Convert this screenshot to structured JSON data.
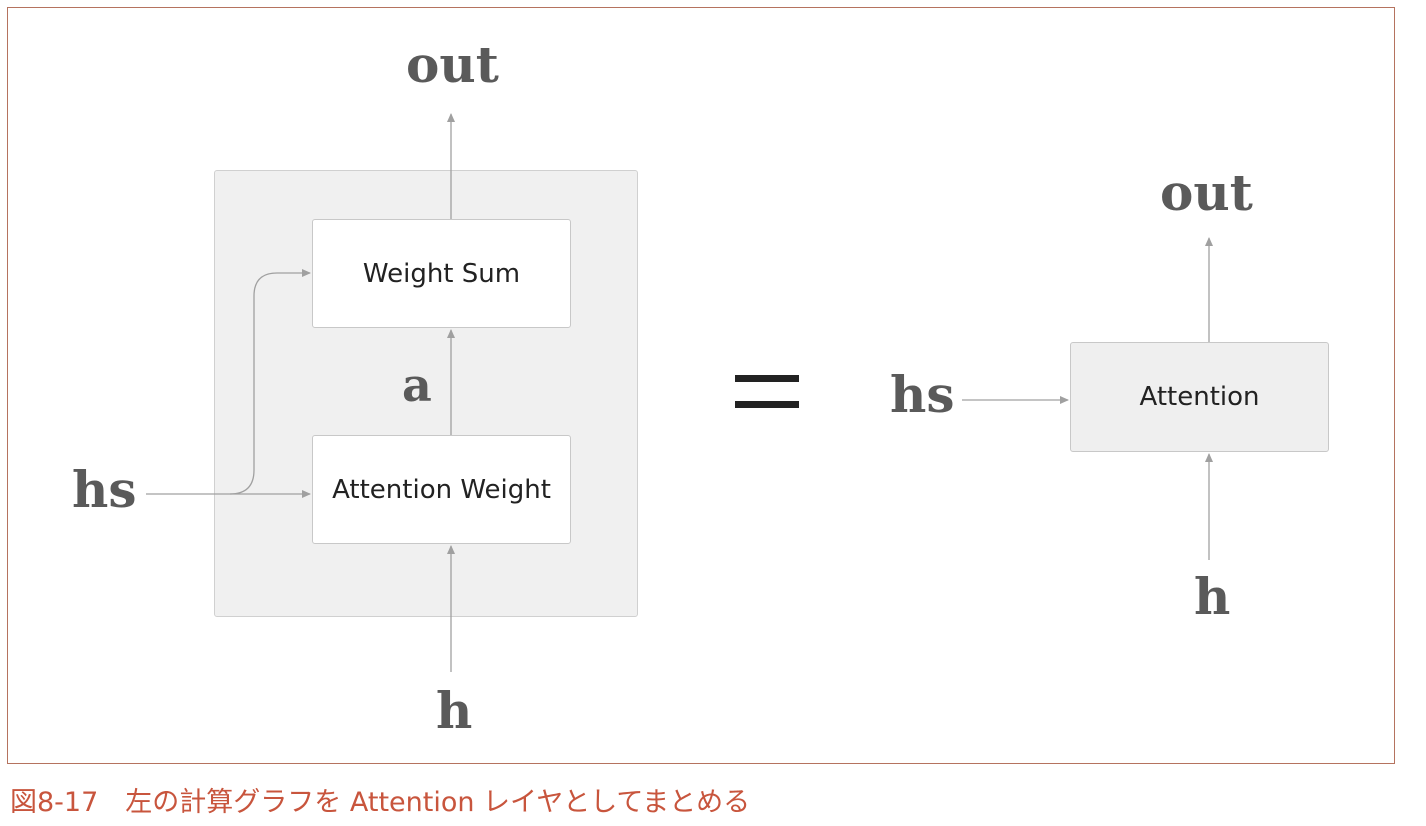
{
  "left_diagram": {
    "output_label": "out",
    "weight_sum_label": "Weight Sum",
    "intermediate_label": "a",
    "attention_weight_label": "Attention Weight",
    "hs_label": "hs",
    "h_label": "h"
  },
  "equals_sign": "=",
  "right_diagram": {
    "output_label": "out",
    "attention_label": "Attention",
    "hs_label": "hs",
    "h_label": "h"
  },
  "caption": "図8-17　左の計算グラフを Attention レイヤとしてまとめる",
  "colors": {
    "frame_border": "#b5735f",
    "caption": "#c8553d",
    "group_background": "#f0f0f0",
    "arrow": "#a0a0a0",
    "variable_text": "#5a5a5a"
  }
}
